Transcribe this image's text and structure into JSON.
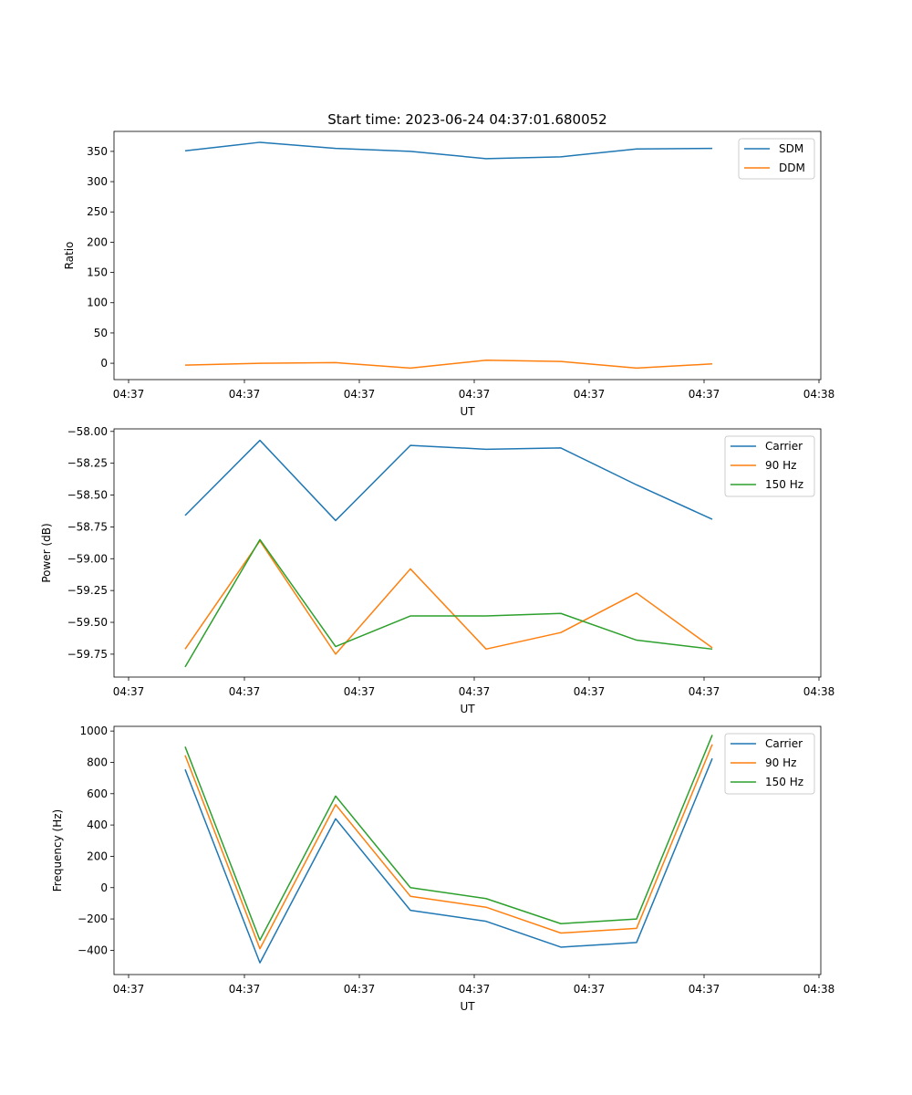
{
  "figure_title": "Start time: 2023-06-24 04:37:01.680052",
  "colors": {
    "blue": "#1f77b4",
    "orange": "#ff7f0e",
    "green": "#2ca02c"
  },
  "chart_data": [
    {
      "type": "line",
      "title": "Start time: 2023-06-24 04:37:01.680052",
      "xlabel": "UT",
      "ylabel": "Ratio",
      "x_tick_labels": [
        "04:37",
        "04:37",
        "04:37",
        "04:37",
        "04:37",
        "04:37",
        "04:38"
      ],
      "y_ticks": [
        0,
        50,
        100,
        150,
        200,
        250,
        300,
        350
      ],
      "y_tick_labels": [
        "0",
        "50",
        "100",
        "150",
        "200",
        "250",
        "300",
        "350"
      ],
      "ylim": [
        -27,
        383
      ],
      "grid": false,
      "legend_position": "top-right",
      "series": [
        {
          "name": "SDM",
          "color": "#1f77b4",
          "values": [
            351,
            365,
            355,
            350,
            338,
            341,
            354,
            355
          ]
        },
        {
          "name": "DDM",
          "color": "#ff7f0e",
          "values": [
            -3,
            0,
            1,
            -8,
            5,
            3,
            -8,
            -1
          ]
        }
      ]
    },
    {
      "type": "line",
      "xlabel": "UT",
      "ylabel": "Power (dB)",
      "x_tick_labels": [
        "04:37",
        "04:37",
        "04:37",
        "04:37",
        "04:37",
        "04:37",
        "04:38"
      ],
      "y_ticks": [
        -58.0,
        -58.25,
        -58.5,
        -58.75,
        -59.0,
        -59.25,
        -59.5,
        -59.75
      ],
      "y_tick_labels": [
        "−58.00",
        "−58.25",
        "−58.50",
        "−58.75",
        "−59.00",
        "−59.25",
        "−59.50",
        "−59.75"
      ],
      "ylim": [
        -59.93,
        -57.98
      ],
      "grid": false,
      "legend_position": "top-right",
      "series": [
        {
          "name": "Carrier",
          "color": "#1f77b4",
          "values": [
            -58.66,
            -58.07,
            -58.7,
            -58.11,
            -58.14,
            -58.13,
            -58.42,
            -58.69
          ]
        },
        {
          "name": "90 Hz",
          "color": "#ff7f0e",
          "values": [
            -59.71,
            -58.86,
            -59.75,
            -59.08,
            -59.71,
            -59.58,
            -59.27,
            -59.7
          ]
        },
        {
          "name": "150 Hz",
          "color": "#2ca02c",
          "values": [
            -59.85,
            -58.85,
            -59.69,
            -59.45,
            -59.45,
            -59.43,
            -59.64,
            -59.71
          ]
        }
      ]
    },
    {
      "type": "line",
      "xlabel": "UT",
      "ylabel": "Frequency (Hz)",
      "x_tick_labels": [
        "04:37",
        "04:37",
        "04:37",
        "04:37",
        "04:37",
        "04:37",
        "04:38"
      ],
      "y_ticks": [
        -400,
        -200,
        0,
        200,
        400,
        600,
        800,
        1000
      ],
      "y_tick_labels": [
        "−400",
        "−200",
        "0",
        "200",
        "400",
        "600",
        "800",
        "1000"
      ],
      "ylim": [
        -555,
        1030
      ],
      "grid": false,
      "legend_position": "top-right",
      "series": [
        {
          "name": "Carrier",
          "color": "#1f77b4",
          "values": [
            755,
            -480,
            440,
            -145,
            -215,
            -380,
            -350,
            825
          ]
        },
        {
          "name": "90 Hz",
          "color": "#ff7f0e",
          "values": [
            845,
            -390,
            530,
            -55,
            -125,
            -290,
            -260,
            915
          ]
        },
        {
          "name": "150 Hz",
          "color": "#2ca02c",
          "values": [
            900,
            -335,
            585,
            0,
            -70,
            -230,
            -200,
            975
          ]
        }
      ]
    }
  ]
}
